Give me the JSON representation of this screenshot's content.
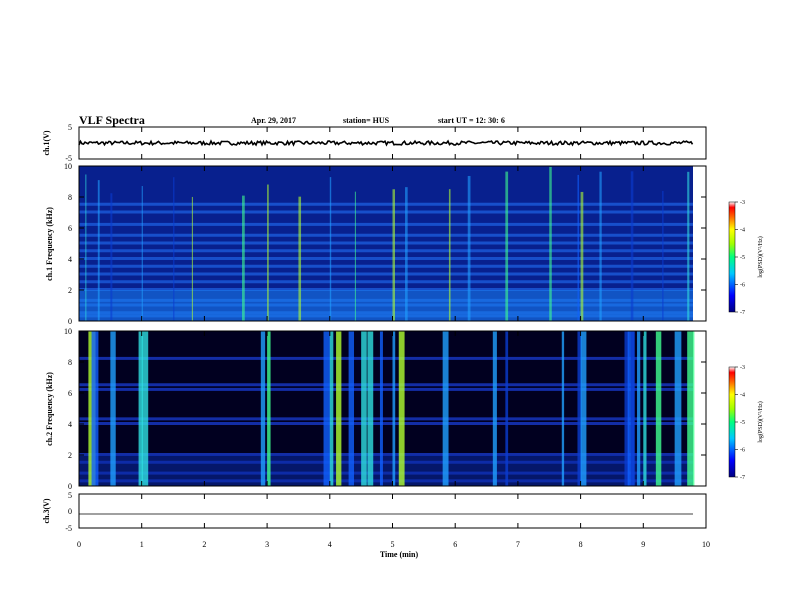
{
  "header": {
    "title": "VLF Spectra",
    "date": "Apr. 29, 2017",
    "station": "station= HUS",
    "start": "start UT = 12: 30: 6"
  },
  "colors": {
    "background_dark": "#000066",
    "panel_frame": "#000000"
  },
  "chart_data": [
    {
      "type": "line",
      "panel": "ch1-waveform",
      "ylabel": "ch.1(V)",
      "ylim": [
        -5,
        5
      ],
      "yticks": [
        "5",
        "-5"
      ],
      "x": [
        0,
        10
      ],
      "level": 0
    },
    {
      "type": "heatmap",
      "panel": "ch1-spectrogram",
      "ylabel": "ch.1 Frequency (kHz)",
      "ylim": [
        0,
        10
      ],
      "yticks": [
        "0",
        "2",
        "4",
        "6",
        "8",
        "10"
      ],
      "xlim": [
        0,
        10
      ],
      "colorbar": {
        "label": "log(PSD)(V²/Hz)",
        "range": [
          -7,
          -3
        ],
        "ticks": [
          "-3",
          "-4",
          "-5",
          "-6",
          "-7"
        ]
      },
      "bursts_min": [
        0.1,
        0.3,
        0.5,
        1.0,
        1.5,
        1.8,
        2.6,
        3.0,
        3.5,
        4.0,
        4.4,
        5.0,
        5.2,
        5.9,
        6.2,
        6.8,
        7.5,
        7.95,
        8.0,
        8.3,
        8.8,
        9.3,
        9.7
      ],
      "bands_khz": [
        0.3,
        0.5,
        1.0,
        1.3,
        2.0,
        2.5,
        3.0,
        3.5,
        4.0,
        4.5,
        5.0,
        5.5,
        6.2,
        7.0,
        7.5
      ]
    },
    {
      "type": "heatmap",
      "panel": "ch2-spectrogram",
      "ylabel": "ch.2 Frequency (kHz)",
      "ylim": [
        0,
        10
      ],
      "yticks": [
        "0",
        "2",
        "4",
        "6",
        "8",
        "10"
      ],
      "xlim": [
        0,
        10
      ],
      "colorbar": {
        "label": "log(PSD)(V²/Hz)",
        "range": [
          -7,
          -3
        ],
        "ticks": [
          "-3",
          "-4",
          "-5",
          "-6",
          "-7"
        ]
      },
      "bursts_min": [
        0.15,
        0.2,
        0.5,
        0.95,
        1.0,
        2.9,
        3.0,
        3.9,
        4.0,
        4.1,
        4.3,
        4.5,
        4.6,
        4.8,
        5.0,
        5.1,
        5.8,
        6.6,
        6.8,
        7.7,
        7.95,
        8.0,
        8.7,
        8.75,
        8.8,
        8.9,
        9.0,
        9.2,
        9.5,
        9.7
      ],
      "bands_khz": [
        0.3,
        0.8,
        1.5,
        2.0,
        4.0,
        4.3,
        6.2,
        6.5,
        8.2
      ]
    },
    {
      "type": "line",
      "panel": "ch3-waveform",
      "ylabel": "ch.3(V)",
      "ylim": [
        -5,
        5
      ],
      "yticks": [
        "5",
        "0",
        "-5"
      ],
      "x": [
        0,
        10
      ],
      "level": -2
    }
  ],
  "xaxis": {
    "label": "Time (min)",
    "ticks": [
      "0",
      "1",
      "2",
      "3",
      "4",
      "5",
      "6",
      "7",
      "8",
      "9",
      "10"
    ],
    "range": [
      0,
      10
    ]
  }
}
